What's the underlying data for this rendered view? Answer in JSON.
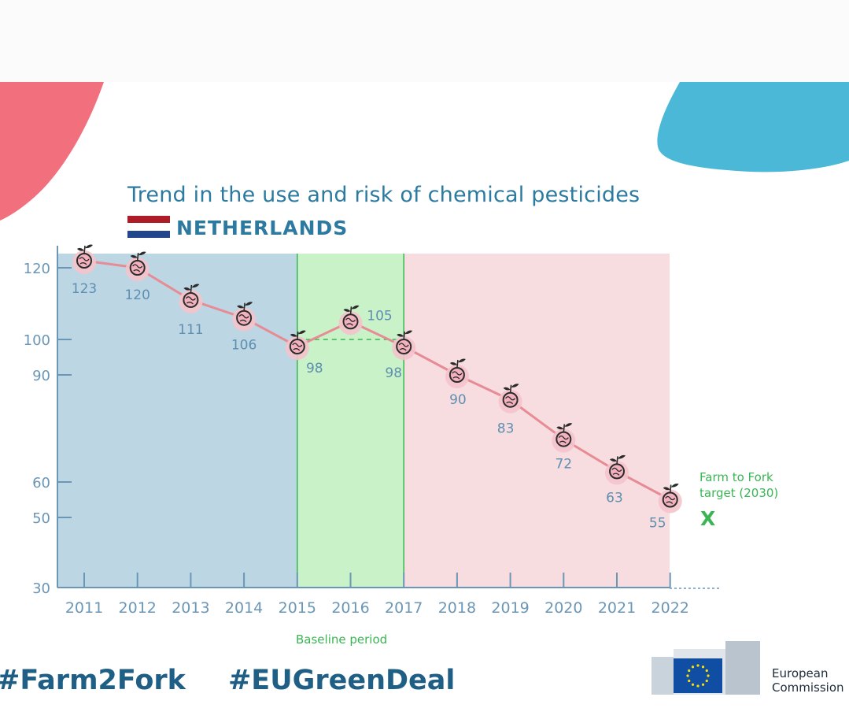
{
  "chart_data": {
    "type": "line",
    "title": "Trend in the use and risk of chemical pesticides",
    "subtitle": "NETHERLANDS",
    "categories": [
      "2011",
      "2012",
      "2013",
      "2014",
      "2015",
      "2016",
      "2017",
      "2018",
      "2019",
      "2020",
      "2021",
      "2022"
    ],
    "series": [
      {
        "values": [
          123,
          120,
          111,
          106,
          98,
          105,
          98,
          90,
          83,
          72,
          63,
          55
        ]
      }
    ],
    "data_labels": [
      "123",
      "120",
      "111",
      "106",
      "98",
      "105",
      "98",
      "90",
      "83",
      "72",
      "63",
      "55"
    ],
    "yticks": [
      30,
      50,
      60,
      90,
      100,
      120
    ],
    "ytick_labels": [
      "30",
      "50",
      "60",
      "90",
      "100",
      "120"
    ],
    "baseline_value": 100,
    "regions": [
      {
        "from": "2011",
        "to": "2015",
        "color": "#bcd6e4"
      },
      {
        "from": "2015",
        "to": "2017",
        "color": "#c9f2c8",
        "label": "Baseline period"
      },
      {
        "from": "2017",
        "to": "2022",
        "color": "#f7dde0"
      }
    ],
    "target": {
      "label": "Farm to Fork\ntarget (2030)",
      "marker": "X"
    },
    "line_color": "#e78b95",
    "marker_color": "#f4c3cb",
    "label_color": "#5f8fb0",
    "axis_color": "#6b96b5",
    "grid": false,
    "legend": "none"
  },
  "flag_colors": [
    "#ae1c28",
    "#ffffff",
    "#21468b"
  ],
  "footer": {
    "hashtags": [
      "#Farm2Fork",
      "#EUGreenDeal"
    ],
    "logo_text": "European\nCommission",
    "logo_icon": "eu-flag-icon"
  }
}
